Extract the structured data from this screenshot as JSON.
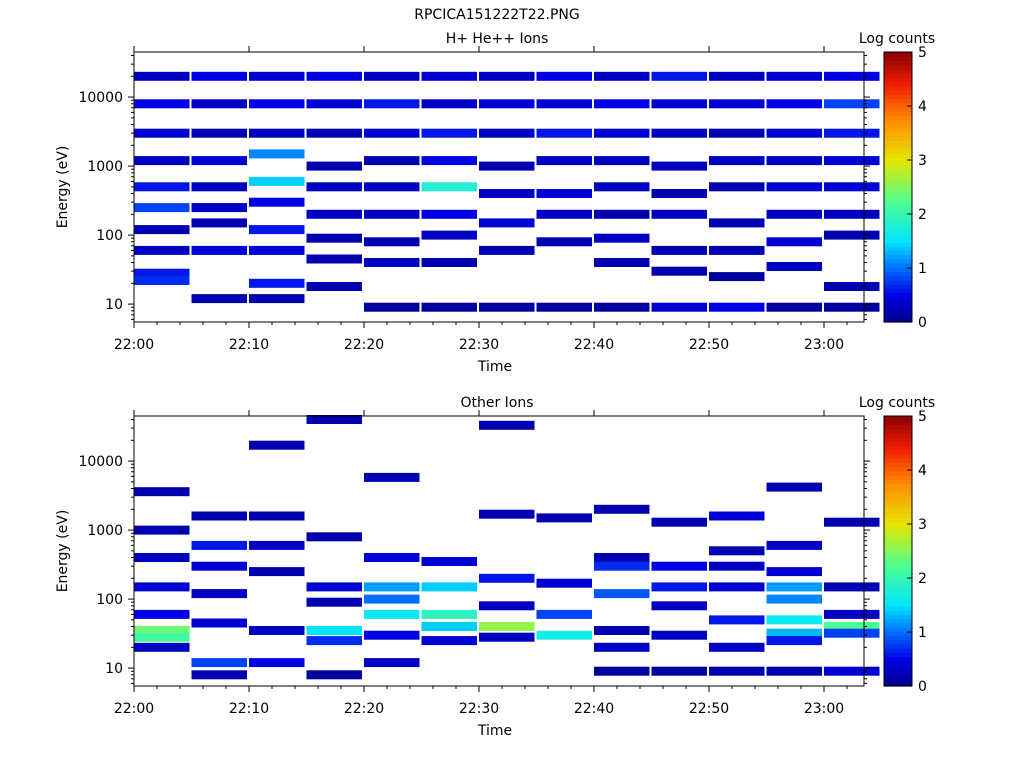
{
  "figure": {
    "filename": "RPCICA151222T22.PNG"
  },
  "chart_data": [
    {
      "type": "heatmap",
      "title": "H+ He++ Ions",
      "xlabel": "Time",
      "ylabel": "Energy (eV)",
      "x_ticks": [
        "22:00",
        "22:10",
        "22:20",
        "22:30",
        "22:40",
        "22:50",
        "23:00"
      ],
      "y_ticks": [
        "10",
        "100",
        "1000",
        "10000"
      ],
      "y_scale": "log",
      "colorbar": {
        "label": "Log counts",
        "range": [
          0,
          5
        ],
        "ticks": [
          "0",
          "1",
          "2",
          "3",
          "4",
          "5"
        ]
      },
      "time_range": [
        "22:00",
        "23:03"
      ],
      "energy_range_eV": [
        5.5,
        45000
      ],
      "columns": [
        {
          "time": "22:00",
          "cells": [
            {
              "e": 20000,
              "v": 0.3
            },
            {
              "e": 8000,
              "v": 0.5
            },
            {
              "e": 3000,
              "v": 0.4
            },
            {
              "e": 1200,
              "v": 0.3
            },
            {
              "e": 500,
              "v": 0.6
            },
            {
              "e": 250,
              "v": 0.8
            },
            {
              "e": 120,
              "v": 0.2
            },
            {
              "e": 60,
              "v": 0.3
            },
            {
              "e": 28,
              "v": 0.6
            },
            {
              "e": 22,
              "v": 0.7
            }
          ]
        },
        {
          "time": "22:05",
          "cells": [
            {
              "e": 20000,
              "v": 0.5
            },
            {
              "e": 8000,
              "v": 0.3
            },
            {
              "e": 3000,
              "v": 0.2
            },
            {
              "e": 1200,
              "v": 0.4
            },
            {
              "e": 500,
              "v": 0.3
            },
            {
              "e": 250,
              "v": 0.3
            },
            {
              "e": 150,
              "v": 0.2
            },
            {
              "e": 60,
              "v": 0.4
            },
            {
              "e": 12,
              "v": 0.2
            }
          ]
        },
        {
          "time": "22:10",
          "cells": [
            {
              "e": 20000,
              "v": 0.4
            },
            {
              "e": 8000,
              "v": 0.5
            },
            {
              "e": 3000,
              "v": 0.3
            },
            {
              "e": 1500,
              "v": 1.1
            },
            {
              "e": 600,
              "v": 1.4
            },
            {
              "e": 300,
              "v": 0.5
            },
            {
              "e": 120,
              "v": 0.6
            },
            {
              "e": 60,
              "v": 0.4
            },
            {
              "e": 20,
              "v": 0.6
            },
            {
              "e": 12,
              "v": 0.2
            }
          ]
        },
        {
          "time": "22:15",
          "cells": [
            {
              "e": 20000,
              "v": 0.5
            },
            {
              "e": 8000,
              "v": 0.4
            },
            {
              "e": 3000,
              "v": 0.2
            },
            {
              "e": 1000,
              "v": 0.2
            },
            {
              "e": 500,
              "v": 0.3
            },
            {
              "e": 200,
              "v": 0.3
            },
            {
              "e": 90,
              "v": 0.2
            },
            {
              "e": 45,
              "v": 0.2
            },
            {
              "e": 18,
              "v": 0.2
            }
          ]
        },
        {
          "time": "22:20",
          "cells": [
            {
              "e": 20000,
              "v": 0.3
            },
            {
              "e": 8000,
              "v": 0.6
            },
            {
              "e": 3000,
              "v": 0.4
            },
            {
              "e": 1200,
              "v": 0.2
            },
            {
              "e": 500,
              "v": 0.3
            },
            {
              "e": 200,
              "v": 0.3
            },
            {
              "e": 80,
              "v": 0.2
            },
            {
              "e": 40,
              "v": 0.3
            },
            {
              "e": 9,
              "v": 0.1
            }
          ]
        },
        {
          "time": "22:25",
          "cells": [
            {
              "e": 20000,
              "v": 0.4
            },
            {
              "e": 8000,
              "v": 0.3
            },
            {
              "e": 3000,
              "v": 0.6
            },
            {
              "e": 1200,
              "v": 0.5
            },
            {
              "e": 500,
              "v": 1.8
            },
            {
              "e": 200,
              "v": 0.5
            },
            {
              "e": 100,
              "v": 0.3
            },
            {
              "e": 40,
              "v": 0.2
            },
            {
              "e": 9,
              "v": 0.1
            }
          ]
        },
        {
          "time": "22:30",
          "cells": [
            {
              "e": 20000,
              "v": 0.3
            },
            {
              "e": 8000,
              "v": 0.4
            },
            {
              "e": 3000,
              "v": 0.3
            },
            {
              "e": 1000,
              "v": 0.2
            },
            {
              "e": 400,
              "v": 0.3
            },
            {
              "e": 150,
              "v": 0.4
            },
            {
              "e": 60,
              "v": 0.2
            },
            {
              "e": 9,
              "v": 0.1
            }
          ]
        },
        {
          "time": "22:35",
          "cells": [
            {
              "e": 20000,
              "v": 0.5
            },
            {
              "e": 8000,
              "v": 0.4
            },
            {
              "e": 3000,
              "v": 0.6
            },
            {
              "e": 1200,
              "v": 0.3
            },
            {
              "e": 400,
              "v": 0.4
            },
            {
              "e": 200,
              "v": 0.3
            },
            {
              "e": 80,
              "v": 0.2
            },
            {
              "e": 9,
              "v": 0.1
            }
          ]
        },
        {
          "time": "22:40",
          "cells": [
            {
              "e": 20000,
              "v": 0.3
            },
            {
              "e": 8000,
              "v": 0.5
            },
            {
              "e": 3000,
              "v": 0.4
            },
            {
              "e": 1200,
              "v": 0.3
            },
            {
              "e": 500,
              "v": 0.3
            },
            {
              "e": 200,
              "v": 0.2
            },
            {
              "e": 90,
              "v": 0.3
            },
            {
              "e": 40,
              "v": 0.2
            },
            {
              "e": 9,
              "v": 0.1
            }
          ]
        },
        {
          "time": "22:45",
          "cells": [
            {
              "e": 20000,
              "v": 0.6
            },
            {
              "e": 8000,
              "v": 0.4
            },
            {
              "e": 3000,
              "v": 0.3
            },
            {
              "e": 1000,
              "v": 0.3
            },
            {
              "e": 400,
              "v": 0.2
            },
            {
              "e": 200,
              "v": 0.3
            },
            {
              "e": 60,
              "v": 0.2
            },
            {
              "e": 30,
              "v": 0.2
            },
            {
              "e": 9,
              "v": 0.4
            }
          ]
        },
        {
          "time": "22:50",
          "cells": [
            {
              "e": 20000,
              "v": 0.3
            },
            {
              "e": 8000,
              "v": 0.4
            },
            {
              "e": 3000,
              "v": 0.2
            },
            {
              "e": 1200,
              "v": 0.3
            },
            {
              "e": 500,
              "v": 0.2
            },
            {
              "e": 150,
              "v": 0.2
            },
            {
              "e": 60,
              "v": 0.2
            },
            {
              "e": 25,
              "v": 0.1
            },
            {
              "e": 9,
              "v": 0.5
            }
          ]
        },
        {
          "time": "22:55",
          "cells": [
            {
              "e": 20000,
              "v": 0.4
            },
            {
              "e": 8000,
              "v": 0.5
            },
            {
              "e": 3000,
              "v": 0.4
            },
            {
              "e": 1200,
              "v": 0.3
            },
            {
              "e": 500,
              "v": 0.4
            },
            {
              "e": 200,
              "v": 0.3
            },
            {
              "e": 80,
              "v": 0.4
            },
            {
              "e": 35,
              "v": 0.3
            },
            {
              "e": 9,
              "v": 0.1
            }
          ]
        },
        {
          "time": "23:00",
          "cells": [
            {
              "e": 20000,
              "v": 0.5
            },
            {
              "e": 8000,
              "v": 0.8
            },
            {
              "e": 3000,
              "v": 0.6
            },
            {
              "e": 1200,
              "v": 0.4
            },
            {
              "e": 500,
              "v": 0.4
            },
            {
              "e": 200,
              "v": 0.3
            },
            {
              "e": 100,
              "v": 0.2
            },
            {
              "e": 18,
              "v": 0.2
            },
            {
              "e": 9,
              "v": 0.1
            }
          ]
        }
      ]
    },
    {
      "type": "heatmap",
      "title": "Other Ions",
      "xlabel": "Time",
      "ylabel": "Energy (eV)",
      "x_ticks": [
        "22:00",
        "22:10",
        "22:20",
        "22:30",
        "22:40",
        "22:50",
        "23:00"
      ],
      "y_ticks": [
        "10",
        "100",
        "1000",
        "10000"
      ],
      "y_scale": "log",
      "colorbar": {
        "label": "Log counts",
        "range": [
          0,
          5
        ],
        "ticks": [
          "0",
          "1",
          "2",
          "3",
          "4",
          "5"
        ]
      },
      "time_range": [
        "22:00",
        "23:03"
      ],
      "energy_range_eV": [
        5.5,
        45000
      ],
      "columns": [
        {
          "time": "22:00",
          "cells": [
            {
              "e": 3600,
              "v": 0.2
            },
            {
              "e": 1000,
              "v": 0.2
            },
            {
              "e": 400,
              "v": 0.3
            },
            {
              "e": 150,
              "v": 0.4
            },
            {
              "e": 60,
              "v": 0.5
            },
            {
              "e": 35,
              "v": 2.4
            },
            {
              "e": 28,
              "v": 2.1
            },
            {
              "e": 20,
              "v": 0.3
            }
          ]
        },
        {
          "time": "22:05",
          "cells": [
            {
              "e": 1600,
              "v": 0.2
            },
            {
              "e": 600,
              "v": 0.6
            },
            {
              "e": 300,
              "v": 0.4
            },
            {
              "e": 120,
              "v": 0.3
            },
            {
              "e": 45,
              "v": 0.4
            },
            {
              "e": 12,
              "v": 0.8
            },
            {
              "e": 8,
              "v": 0.2
            }
          ]
        },
        {
          "time": "22:10",
          "cells": [
            {
              "e": 17000,
              "v": 0.2
            },
            {
              "e": 1600,
              "v": 0.2
            },
            {
              "e": 600,
              "v": 0.3
            },
            {
              "e": 250,
              "v": 0.2
            },
            {
              "e": 35,
              "v": 0.3
            },
            {
              "e": 12,
              "v": 0.5
            }
          ]
        },
        {
          "time": "22:15",
          "cells": [
            {
              "e": 40000,
              "v": 0.2
            },
            {
              "e": 800,
              "v": 0.2
            },
            {
              "e": 150,
              "v": 0.4
            },
            {
              "e": 90,
              "v": 0.2
            },
            {
              "e": 35,
              "v": 1.5
            },
            {
              "e": 25,
              "v": 0.7
            },
            {
              "e": 8,
              "v": 0.1
            }
          ]
        },
        {
          "time": "22:20",
          "cells": [
            {
              "e": 5800,
              "v": 0.2
            },
            {
              "e": 400,
              "v": 0.4
            },
            {
              "e": 150,
              "v": 1.2
            },
            {
              "e": 100,
              "v": 1.0
            },
            {
              "e": 60,
              "v": 1.6
            },
            {
              "e": 30,
              "v": 0.5
            },
            {
              "e": 12,
              "v": 0.3
            }
          ]
        },
        {
          "time": "22:25",
          "cells": [
            {
              "e": 350,
              "v": 0.4
            },
            {
              "e": 150,
              "v": 1.4
            },
            {
              "e": 60,
              "v": 1.9
            },
            {
              "e": 40,
              "v": 1.4
            },
            {
              "e": 25,
              "v": 0.4
            }
          ]
        },
        {
          "time": "22:30",
          "cells": [
            {
              "e": 33000,
              "v": 0.2
            },
            {
              "e": 1700,
              "v": 0.2
            },
            {
              "e": 200,
              "v": 0.6
            },
            {
              "e": 80,
              "v": 0.3
            },
            {
              "e": 40,
              "v": 2.6
            },
            {
              "e": 28,
              "v": 0.3
            }
          ]
        },
        {
          "time": "22:35",
          "cells": [
            {
              "e": 1500,
              "v": 0.2
            },
            {
              "e": 170,
              "v": 0.4
            },
            {
              "e": 60,
              "v": 0.8
            },
            {
              "e": 30,
              "v": 1.7
            }
          ]
        },
        {
          "time": "22:40",
          "cells": [
            {
              "e": 2000,
              "v": 0.2
            },
            {
              "e": 400,
              "v": 0.2
            },
            {
              "e": 300,
              "v": 0.7
            },
            {
              "e": 120,
              "v": 0.9
            },
            {
              "e": 35,
              "v": 0.2
            },
            {
              "e": 20,
              "v": 0.3
            },
            {
              "e": 9,
              "v": 0.1
            }
          ]
        },
        {
          "time": "22:45",
          "cells": [
            {
              "e": 1300,
              "v": 0.2
            },
            {
              "e": 300,
              "v": 0.5
            },
            {
              "e": 150,
              "v": 0.6
            },
            {
              "e": 80,
              "v": 0.3
            },
            {
              "e": 30,
              "v": 0.3
            },
            {
              "e": 9,
              "v": 0.1
            }
          ]
        },
        {
          "time": "22:50",
          "cells": [
            {
              "e": 1600,
              "v": 0.4
            },
            {
              "e": 500,
              "v": 0.2
            },
            {
              "e": 300,
              "v": 0.3
            },
            {
              "e": 150,
              "v": 0.4
            },
            {
              "e": 50,
              "v": 0.6
            },
            {
              "e": 20,
              "v": 0.3
            },
            {
              "e": 9,
              "v": 0.2
            }
          ]
        },
        {
          "time": "22:55",
          "cells": [
            {
              "e": 4200,
              "v": 0.2
            },
            {
              "e": 600,
              "v": 0.3
            },
            {
              "e": 250,
              "v": 0.4
            },
            {
              "e": 150,
              "v": 1.2
            },
            {
              "e": 100,
              "v": 1.1
            },
            {
              "e": 50,
              "v": 1.6
            },
            {
              "e": 32,
              "v": 1.3
            },
            {
              "e": 25,
              "v": 0.6
            },
            {
              "e": 9,
              "v": 0.2
            }
          ]
        },
        {
          "time": "23:00",
          "cells": [
            {
              "e": 1300,
              "v": 0.2
            },
            {
              "e": 150,
              "v": 0.2
            },
            {
              "e": 60,
              "v": 0.3
            },
            {
              "e": 40,
              "v": 2.2
            },
            {
              "e": 32,
              "v": 0.8
            },
            {
              "e": 9,
              "v": 0.4
            }
          ]
        }
      ]
    }
  ]
}
